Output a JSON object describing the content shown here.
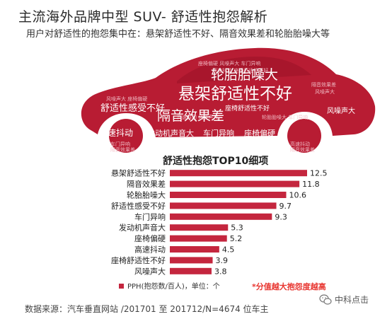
{
  "header": {
    "title": "主流海外品牌中型 SUV- 舒适性抱怨解析",
    "subtitle": "用户对舒适性的抱怨集中在：悬架舒适性不好、隔音效果差和轮胎胎噪大等"
  },
  "word_cloud": {
    "words": [
      {
        "text": "悬架舒适性不好",
        "emphasis": "largest"
      },
      {
        "text": "轮胎胎噪大",
        "emphasis": "large"
      },
      {
        "text": "隔音效果差",
        "emphasis": "large"
      },
      {
        "text": "舒适性感受不好",
        "emphasis": "medium"
      },
      {
        "text": "高速抖动",
        "emphasis": "medium"
      },
      {
        "text": "发动机声音大",
        "emphasis": "medium"
      },
      {
        "text": "车门异响",
        "emphasis": "medium"
      },
      {
        "text": "座椅偏硬",
        "emphasis": "small"
      },
      {
        "text": "风噪声大",
        "emphasis": "small"
      },
      {
        "text": "座椅舒适性不好",
        "emphasis": "small"
      }
    ],
    "colors": {
      "dark": "#a0132a",
      "light": "#ffffff",
      "shape": "#b81c33"
    }
  },
  "chart_data": {
    "type": "bar",
    "orientation": "horizontal",
    "title": "舒适性抱怨TOP10细项",
    "categories": [
      "悬架舒适性不好",
      "隔音效果差",
      "轮胎胎噪大",
      "舒适性感受不好",
      "车门异响",
      "发动机声音大",
      "座椅偏硬",
      "高速抖动",
      "座椅舒适性不好",
      "风噪声大"
    ],
    "series": [
      {
        "name": "PPH(抱怨数/百人)，单位：个",
        "values": [
          12.5,
          11.8,
          10.6,
          9.7,
          9.3,
          5.3,
          5.2,
          4.5,
          3.9,
          3.8
        ],
        "color": "#c4263e"
      }
    ],
    "xlim": [
      0,
      12.5
    ],
    "legend_position": "bottom-left",
    "annotation": "*分值越大抱怨度越高",
    "annotation_color": "#e8352f"
  },
  "footer": {
    "source": "数据来源：汽车垂直网站 /201701 至 201712/N=4674 位车主",
    "logo_text": "中科点击",
    "logo_icon": "wechat-icon"
  }
}
